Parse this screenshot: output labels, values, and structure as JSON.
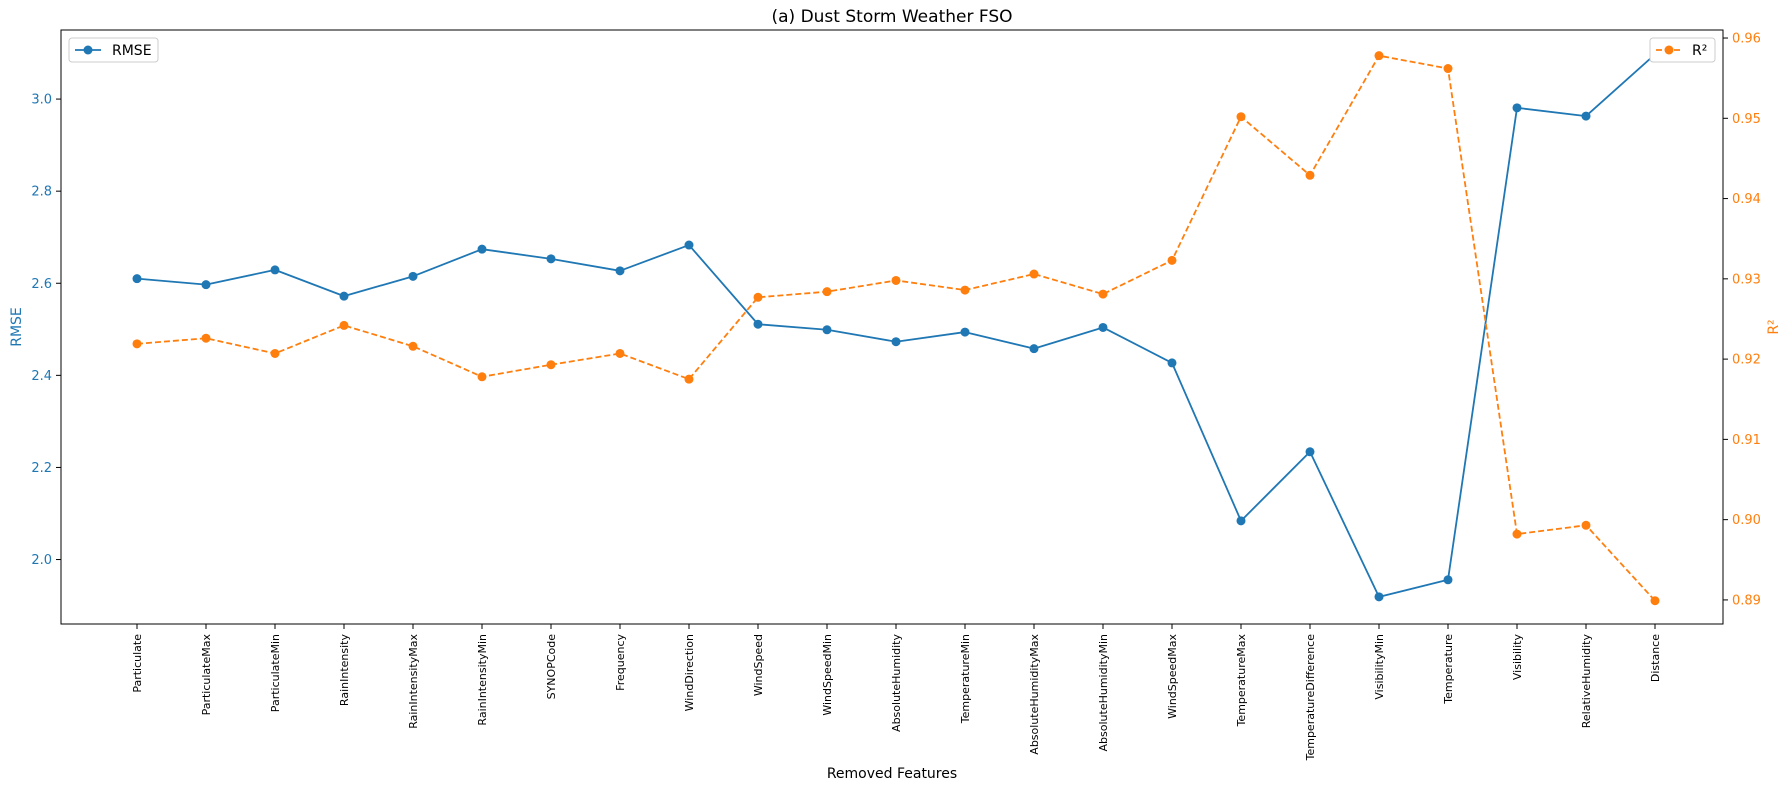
{
  "chart_data": {
    "type": "line",
    "title": "(a) Dust Storm Weather FSO",
    "xlabel": "Removed Features",
    "categories": [
      "Particulate",
      "ParticulateMax",
      "ParticulateMin",
      "RainIntensity",
      "RainIntensityMax",
      "RainIntensityMin",
      "SYNOPCode",
      "Frequency",
      "WindDirection",
      "WindSpeed",
      "WindSpeedMin",
      "AbsoluteHumidity",
      "TemperatureMin",
      "AbsoluteHumidityMax",
      "AbsoluteHumidityMin",
      "WindSpeedMax",
      "TemperatureMax",
      "TemperatureDifference",
      "VisibilityMin",
      "Temperature",
      "Visibility",
      "RelativeHumidity",
      "Distance"
    ],
    "series": [
      {
        "name": "RMSE",
        "axis": "left",
        "color": "#1f77b4",
        "linestyle": "solid",
        "values": [
          2.61,
          2.597,
          2.629,
          2.572,
          2.615,
          2.674,
          2.653,
          2.627,
          2.683,
          2.511,
          2.499,
          2.473,
          2.494,
          2.458,
          2.504,
          2.427,
          2.084,
          2.234,
          1.919,
          1.956,
          2.981,
          2.963,
          3.097
        ]
      },
      {
        "name": "R²",
        "axis": "right",
        "color": "#ff7f0e",
        "linestyle": "dashed",
        "values": [
          0.9219,
          0.9226,
          0.9207,
          0.9242,
          0.9216,
          0.9178,
          0.9193,
          0.9207,
          0.9175,
          0.9277,
          0.9284,
          0.9298,
          0.9286,
          0.9306,
          0.9281,
          0.9323,
          0.9502,
          0.9429,
          0.9578,
          0.9562,
          0.8982,
          0.8993,
          0.8899
        ]
      }
    ],
    "left_axis": {
      "label": "RMSE",
      "ylim": [
        1.86,
        3.15
      ],
      "ticks": [
        "2.0",
        "2.2",
        "2.4",
        "2.6",
        "2.8",
        "3.0"
      ],
      "color": "#1f77b4"
    },
    "right_axis": {
      "label": "R²",
      "ylim": [
        0.887,
        0.961
      ],
      "ticks": [
        "0.89",
        "0.90",
        "0.91",
        "0.92",
        "0.93",
        "0.94",
        "0.95",
        "0.96"
      ],
      "color": "#ff7f0e"
    },
    "legends": [
      {
        "label": "RMSE",
        "placement": "upper-left"
      },
      {
        "label": "R²",
        "placement": "upper-right"
      }
    ],
    "grid": false
  }
}
